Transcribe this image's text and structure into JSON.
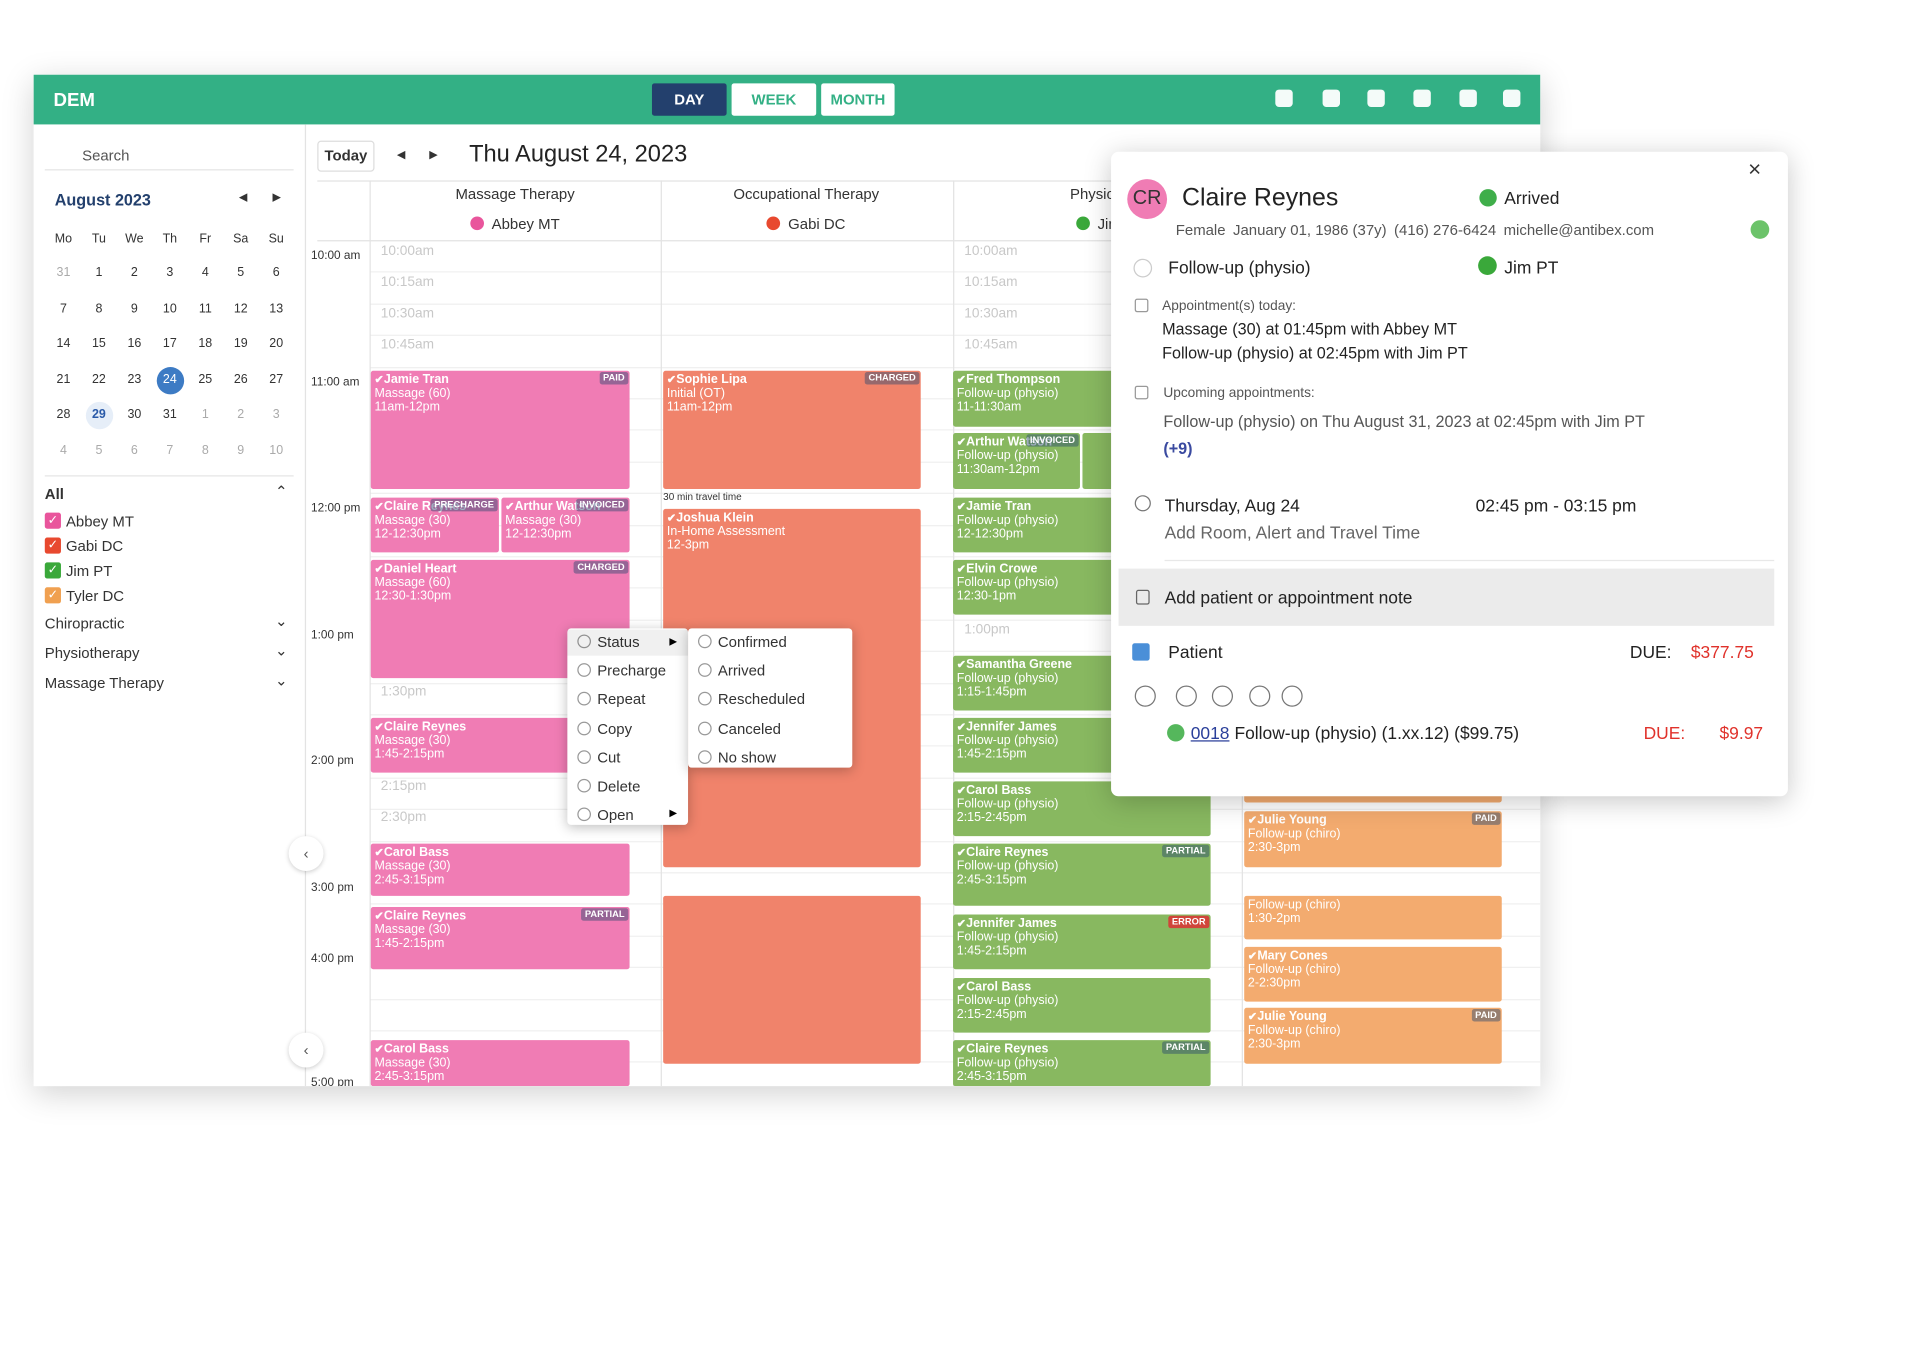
{
  "header": {
    "brand": "DEM",
    "views": [
      "DAY",
      "WEEK",
      "MONTH"
    ]
  },
  "sidebar": {
    "search": "Search",
    "month": "August 2023",
    "weekdays": [
      "Mo",
      "Tu",
      "We",
      "Th",
      "Fr",
      "Sa",
      "Su"
    ],
    "days": [
      31,
      1,
      2,
      3,
      4,
      5,
      6,
      7,
      8,
      9,
      10,
      11,
      12,
      13,
      14,
      15,
      16,
      17,
      18,
      19,
      20,
      21,
      22,
      23,
      24,
      25,
      26,
      27,
      28,
      29,
      30,
      31,
      1,
      2,
      3,
      4,
      5,
      6,
      7,
      8,
      9,
      10
    ]
  },
  "filters": {
    "all": "All",
    "providers": [
      {
        "name": "Abbey MT",
        "color": "#e9559c"
      },
      {
        "name": "Gabi DC",
        "color": "#e8492f"
      },
      {
        "name": "Jim PT",
        "color": "#3aa83a"
      },
      {
        "name": "Tyler DC",
        "color": "#f0a050"
      }
    ],
    "groups": [
      "Chiropractic",
      "Physiotherapy",
      "Massage Therapy"
    ]
  },
  "toolbar": {
    "today": "Today",
    "date": "Thu August 24, 2023"
  },
  "columns": [
    {
      "title": "Massage Therapy",
      "provider": "Abbey MT",
      "color": "#e9559c",
      "slots": [
        "10:00am",
        "10:15am",
        "10:30am",
        "10:45am",
        "1:30pm",
        "2:15pm",
        "2:30pm"
      ]
    },
    {
      "title": "Occupational Therapy",
      "provider": "Gabi DC",
      "color": "#e8492f",
      "slots": []
    },
    {
      "title": "Physioth",
      "provider": "Jim",
      "color": "#3aa83a",
      "slots": [
        "10:00am",
        "10:15am",
        "10:30am",
        "10:45am",
        "1:00pm"
      ]
    }
  ],
  "hours": [
    "10:00 am",
    "11:00 am",
    "12:00 pm",
    "1:00 pm",
    "2:00 pm",
    "3:00 pm",
    "4:00 pm",
    "5:00 pm"
  ],
  "block_colors": [
    "#f07cb4",
    "#f0836b",
    "#88b860",
    "#f3ab6f"
  ],
  "travel": "30 min travel time",
  "appointments": [
    {
      "name": "Jamie Tran",
      "service": "Massage (60)",
      "time": "11am-12pm",
      "badge": "PAID"
    },
    {
      "name": "Claire Reynes",
      "service": "Massage (30)",
      "time": "12-12:30pm",
      "badge": "PRECHARGE"
    },
    {
      "name": "Arthur Watson",
      "service": "Massage (30)",
      "time": "12-12:30pm",
      "badge": "INVOICED"
    },
    {
      "name": "Daniel Heart",
      "service": "Massage (60)",
      "time": "12:30-1:30pm",
      "badge": "CHARGED"
    },
    {
      "name": "Claire Reynes",
      "service": "Massage (30)",
      "time": "1:45-2:15pm"
    },
    {
      "name": "Carol Bass",
      "service": "Massage (30)",
      "time": "2:45-3:15pm"
    },
    {
      "name": "Claire Reynes",
      "service": "Massage (30)",
      "time": "1:45-2:15pm",
      "badge": "PARTIAL"
    },
    {
      "name": "Carol Bass",
      "service": "Massage (30)",
      "time": "2:45-3:15pm"
    },
    {
      "name": "Sophie Lipa",
      "service": "Initial (OT)",
      "time": "11am-12pm",
      "badge": "CHARGED"
    },
    {
      "name": "Joshua Klein",
      "service": "In-Home Assessment",
      "time": "12-3pm"
    },
    {
      "name": "Fred Thompson",
      "service": "Follow-up (physio)",
      "time": "11-11:30am"
    },
    {
      "name": "Arthur Watson",
      "service": "Follow-up (physio)",
      "time": "11:30am-12pm",
      "badge": "INVOICED"
    },
    {
      "name": "Jamie Tran",
      "service": "Follow-up (physio)",
      "time": "12-12:30pm"
    },
    {
      "name": "Elvin Crowe",
      "service": "Follow-up (physio)",
      "time": "12:30-1pm"
    },
    {
      "name": "Samantha Greene",
      "service": "Follow-up (physio)",
      "time": "1:15-1:45pm"
    },
    {
      "name": "Jennifer James",
      "service": "Follow-up (physio)",
      "time": "1:45-2:15pm"
    },
    {
      "name": "Carol Bass",
      "service": "Follow-up (physio)",
      "time": "2:15-2:45pm"
    },
    {
      "name": "Claire Reynes",
      "service": "Follow-up (physio)",
      "time": "2:45-3:15pm",
      "badge": "PARTIAL"
    },
    {
      "name": "Jennifer James",
      "service": "Follow-up (physio)",
      "time": "1:45-2:15pm",
      "badge": "ERROR"
    },
    {
      "name": "Carol Bass",
      "service": "Follow-up (physio)",
      "time": "2:15-2:45pm"
    },
    {
      "name": "Claire Reynes",
      "service": "Follow-up (physio)",
      "time": "2:45-3:15pm",
      "badge": "PARTIAL"
    },
    {
      "name": "Julie Young",
      "service": "Follow-up (chiro)",
      "time": "2:30-3pm",
      "badge": "PAID"
    },
    {
      "service": "Follow-up (chiro)",
      "time": "1:30-2pm"
    },
    {
      "name": "Mary Cones",
      "service": "Follow-up (chiro)",
      "time": "2-2:30pm"
    },
    {
      "name": "Julie Young",
      "service": "Follow-up (chiro)",
      "time": "2:30-3pm",
      "badge": "PAID"
    }
  ],
  "context_menu": {
    "items": [
      "Status",
      "Precharge",
      "Repeat",
      "Copy",
      "Cut",
      "Delete",
      "Open"
    ],
    "status_options": [
      "Confirmed",
      "Arrived",
      "Rescheduled",
      "Canceled",
      "No show"
    ]
  },
  "popup": {
    "initials": "CR",
    "name": "Claire Reynes",
    "status": "Arrived",
    "gender": "Female",
    "dob": "January 01, 1986 (37y)",
    "phone": "(416) 276-6424",
    "email": "michelle@antibex.com",
    "service": "Follow-up (physio)",
    "provider": "Jim PT",
    "today_label": "Appointment(s) today:",
    "today": [
      "Massage (30) at 01:45pm with Abbey MT",
      "Follow-up (physio) at 02:45pm with Jim PT"
    ],
    "upcoming_label": "Upcoming appointments:",
    "upcoming": "Follow-up (physio) on Thu August 31, 2023 at 02:45pm with Jim PT",
    "more": "(+9)",
    "date": "Thursday, Aug 24",
    "time": "02:45 pm - 03:15 pm",
    "add_room": "Add Room, Alert and Travel Time",
    "note": "Add patient or appointment note",
    "patient_label": "Patient",
    "due_label": "DUE:",
    "due": "$377.75",
    "invoice": {
      "number": "0018",
      "desc": "Follow-up (physio) (1.xx.12) ($99.75)",
      "due": "$9.97"
    }
  }
}
